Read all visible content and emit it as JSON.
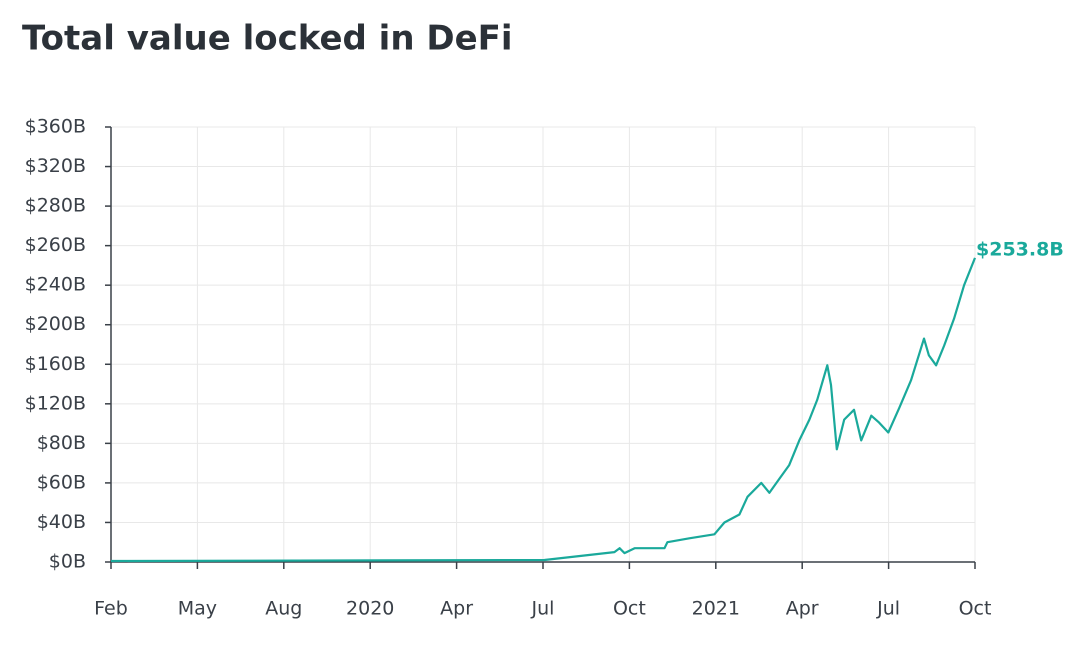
{
  "chart_data": {
    "type": "line",
    "title": "Total value locked in DeFi",
    "xlim": [
      0,
      30
    ],
    "xticks": [
      {
        "value": 0,
        "label": "Feb"
      },
      {
        "value": 3,
        "label": "May"
      },
      {
        "value": 6,
        "label": "Aug"
      },
      {
        "value": 9,
        "label": "2020"
      },
      {
        "value": 12,
        "label": "Apr"
      },
      {
        "value": 15,
        "label": "Jul"
      },
      {
        "value": 18,
        "label": "Oct"
      },
      {
        "value": 21,
        "label": "2021"
      },
      {
        "value": 24,
        "label": "Apr"
      },
      {
        "value": 27,
        "label": "Jul"
      },
      {
        "value": 30,
        "label": "Oct"
      }
    ],
    "ylim": [
      0,
      360
    ],
    "yticks": [
      {
        "value": 0,
        "label": "$0B"
      },
      {
        "value": 40,
        "label": "$40B"
      },
      {
        "value": 60,
        "label": "$60B"
      },
      {
        "value": 80,
        "label": "$80B"
      },
      {
        "value": 120,
        "label": "$120B"
      },
      {
        "value": 160,
        "label": "$160B"
      },
      {
        "value": 200,
        "label": "$200B"
      },
      {
        "value": 240,
        "label": "$240B"
      },
      {
        "value": 260,
        "label": "$260B"
      },
      {
        "value": 280,
        "label": "$280B"
      },
      {
        "value": 320,
        "label": "$320B"
      },
      {
        "value": 360,
        "label": "$360B"
      }
    ],
    "grid": true,
    "series": [
      {
        "color": "#1aa99b",
        "x": [
          0,
          15.05,
          17.48,
          17.66,
          17.83,
          18.18,
          19.22,
          19.32,
          20.08,
          20.95,
          21.3,
          21.82,
          22.1,
          22.58,
          22.86,
          23.2,
          23.55,
          23.9,
          24.25,
          24.52,
          24.87,
          25.0,
          25.2,
          25.46,
          25.8,
          26.05,
          26.4,
          26.67,
          26.99,
          27.37,
          27.78,
          28.23,
          28.4,
          28.65,
          28.93,
          29.27,
          29.62,
          30
        ],
        "values": [
          1,
          2,
          10,
          14,
          9,
          14,
          14,
          20,
          24,
          28,
          40,
          44,
          53,
          60,
          55,
          62,
          69,
          83,
          104,
          124,
          159,
          139,
          77,
          104,
          114,
          83,
          108,
          101,
          91,
          116,
          144,
          186,
          169,
          159,
          179,
          206,
          240,
          253.8
        ],
        "value_labels": [
          null,
          null,
          null,
          null,
          null,
          null,
          null,
          null,
          null,
          null,
          null,
          null,
          null,
          null,
          null,
          null,
          null,
          null,
          null,
          null,
          null,
          null,
          null,
          null,
          null,
          null,
          null,
          null,
          null,
          null,
          null,
          null,
          null,
          null,
          null,
          null,
          null,
          "$253.8B"
        ]
      }
    ]
  }
}
